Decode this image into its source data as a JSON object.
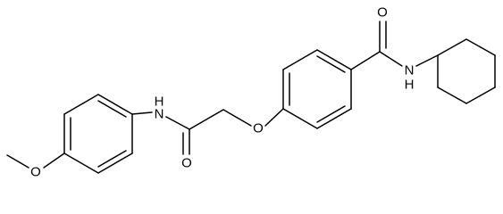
{
  "atoms": [
    {
      "label": "O"
    },
    {
      "label": "N",
      "h": "H"
    },
    {
      "label": "O"
    },
    {
      "label": "O"
    },
    {
      "label": "O"
    },
    {
      "label": "N",
      "h": "H"
    }
  ]
}
